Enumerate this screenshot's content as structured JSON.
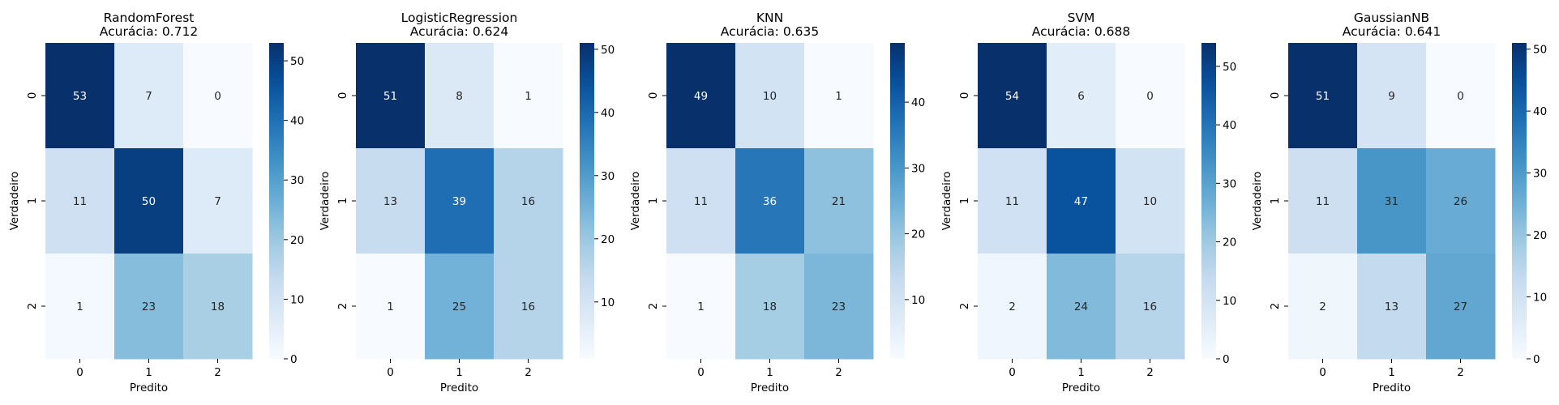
{
  "chart_data": [
    {
      "type": "heatmap",
      "title": "RandomForest",
      "subtitle": "Acurácia: 0.712",
      "xlabel": "Predito",
      "ylabel": "Verdadeiro",
      "x_categories": [
        "0",
        "1",
        "2"
      ],
      "y_categories": [
        "0",
        "1",
        "2"
      ],
      "values": [
        [
          53,
          7,
          0
        ],
        [
          11,
          50,
          7
        ],
        [
          1,
          23,
          18
        ]
      ],
      "vmin": 0,
      "vmax": 53,
      "colorbar_ticks": [
        0,
        10,
        20,
        30,
        40,
        50
      ],
      "colormap": "Blues"
    },
    {
      "type": "heatmap",
      "title": "LogisticRegression",
      "subtitle": "Acurácia: 0.624",
      "xlabel": "Predito",
      "ylabel": "Verdadeiro",
      "x_categories": [
        "0",
        "1",
        "2"
      ],
      "y_categories": [
        "0",
        "1",
        "2"
      ],
      "values": [
        [
          51,
          8,
          1
        ],
        [
          13,
          39,
          16
        ],
        [
          1,
          25,
          16
        ]
      ],
      "vmin": 1,
      "vmax": 51,
      "colorbar_ticks": [
        10,
        20,
        30,
        40,
        50
      ],
      "colormap": "Blues"
    },
    {
      "type": "heatmap",
      "title": "KNN",
      "subtitle": "Acurácia: 0.635",
      "xlabel": "Predito",
      "ylabel": "Verdadeiro",
      "x_categories": [
        "0",
        "1",
        "2"
      ],
      "y_categories": [
        "0",
        "1",
        "2"
      ],
      "values": [
        [
          49,
          10,
          1
        ],
        [
          11,
          36,
          21
        ],
        [
          1,
          18,
          23
        ]
      ],
      "vmin": 1,
      "vmax": 49,
      "colorbar_ticks": [
        10,
        20,
        30,
        40
      ],
      "colormap": "Blues"
    },
    {
      "type": "heatmap",
      "title": "SVM",
      "subtitle": "Acurácia: 0.688",
      "xlabel": "Predito",
      "ylabel": "Verdadeiro",
      "x_categories": [
        "0",
        "1",
        "2"
      ],
      "y_categories": [
        "0",
        "1",
        "2"
      ],
      "values": [
        [
          54,
          6,
          0
        ],
        [
          11,
          47,
          10
        ],
        [
          2,
          24,
          16
        ]
      ],
      "vmin": 0,
      "vmax": 54,
      "colorbar_ticks": [
        0,
        10,
        20,
        30,
        40,
        50
      ],
      "colormap": "Blues"
    },
    {
      "type": "heatmap",
      "title": "GaussianNB",
      "subtitle": "Acurácia: 0.641",
      "xlabel": "Predito",
      "ylabel": "Verdadeiro",
      "x_categories": [
        "0",
        "1",
        "2"
      ],
      "y_categories": [
        "0",
        "1",
        "2"
      ],
      "values": [
        [
          51,
          9,
          0
        ],
        [
          11,
          31,
          26
        ],
        [
          2,
          13,
          27
        ]
      ],
      "vmin": 0,
      "vmax": 51,
      "colorbar_ticks": [
        0,
        10,
        20,
        30,
        40,
        50
      ],
      "colormap": "Blues"
    }
  ]
}
